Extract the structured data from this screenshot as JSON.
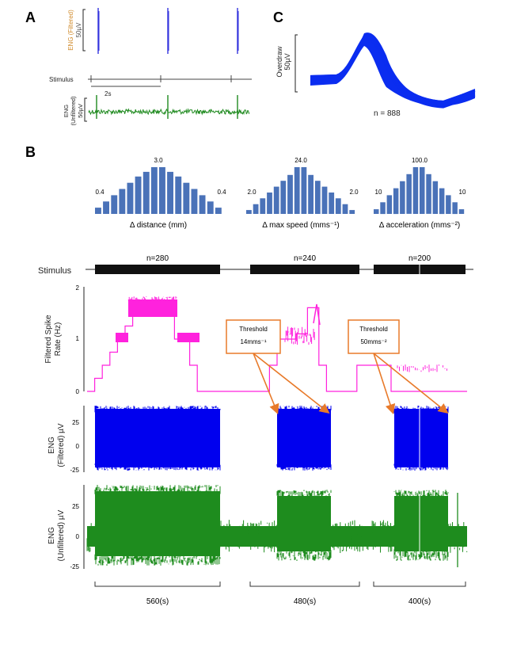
{
  "panels": {
    "a": "A",
    "b": "B",
    "c": "C"
  },
  "panel_a": {
    "eng_filtered_label": "ENG (Filtered)",
    "eng_filtered_scale": "50µV",
    "stimulus_label": "Stimulus",
    "time_scale": "2s",
    "eng_unfiltered_label": "ENG (Unfiltered)",
    "eng_unfiltered_label_line1": "ENG",
    "eng_unfiltered_label_line2": "(Unfiltered)",
    "eng_unfiltered_scale": "50µV",
    "colors": {
      "filtered": "#3333dd",
      "unfiltered": "#1f8a1f",
      "stimulus": "#333333"
    }
  },
  "panel_c": {
    "ylabel": "Overdraw",
    "scale": "50µV",
    "n_label": "n = 888",
    "color": "#0b2df0"
  },
  "histograms": [
    {
      "id": "distance",
      "xlabel": "Δ distance (mm)",
      "peak_label": "3.0",
      "left_label": "0.4",
      "right_label": "0.4",
      "values": [
        0.4,
        0.8,
        1.2,
        1.6,
        2.0,
        2.4,
        2.7,
        3.0,
        3.0,
        2.7,
        2.4,
        2.0,
        1.6,
        1.2,
        0.8,
        0.4
      ]
    },
    {
      "id": "max_speed",
      "xlabel": "Δ max speed (mms⁻¹)",
      "peak_label": "24.0",
      "left_label": "2.0",
      "right_label": "2.0",
      "values": [
        2.0,
        5.0,
        8.0,
        11.0,
        14.0,
        17.0,
        20.0,
        24.0,
        24.0,
        20.0,
        17.0,
        14.0,
        11.0,
        8.0,
        5.0,
        2.0
      ]
    },
    {
      "id": "acceleration",
      "xlabel": "Δ acceleration (mms⁻²)",
      "peak_label": "100.0",
      "left_label": "10",
      "right_label": "10",
      "values": [
        10,
        25,
        40,
        55,
        70,
        85,
        100,
        100,
        85,
        70,
        55,
        40,
        25,
        10
      ]
    }
  ],
  "stimulus_bar": {
    "label": "Stimulus",
    "blocks": [
      {
        "n": "n=280"
      },
      {
        "n": "n=240"
      },
      {
        "n": "n=200"
      }
    ]
  },
  "chart_data": [
    {
      "type": "line",
      "id": "filtered_spike_rate",
      "ylabel": "Filtered Spike Rate (Hz)",
      "ylabel_line1": "Filtered Spike",
      "ylabel_line2": "Rate (Hz)",
      "ylim": [
        0,
        2
      ],
      "yticks": [
        "0",
        "1",
        "2"
      ],
      "color": "#ff22dd",
      "steps": [
        [
          0,
          0
        ],
        [
          0.02,
          0.25
        ],
        [
          0.04,
          0.5
        ],
        [
          0.06,
          0.75
        ],
        [
          0.08,
          1.0
        ],
        [
          0.1,
          1.25
        ],
        [
          0.12,
          1.5
        ],
        [
          0.2,
          1.55
        ],
        [
          0.23,
          1.0
        ],
        [
          0.27,
          0.5
        ],
        [
          0.29,
          0
        ],
        [
          0.46,
          0
        ],
        [
          0.48,
          0.5
        ],
        [
          0.5,
          1.0
        ],
        [
          0.55,
          1.1
        ],
        [
          0.58,
          1.6
        ],
        [
          0.61,
          0.5
        ],
        [
          0.63,
          0
        ],
        [
          0.69,
          0
        ],
        [
          0.71,
          0.5
        ],
        [
          0.78,
          0.5
        ],
        [
          0.8,
          0
        ]
      ],
      "annotations": [
        {
          "text_line1": "Threshold",
          "text_line2": "14mms⁻¹"
        },
        {
          "text_line1": "Threshold",
          "text_line2": "50mms⁻²"
        }
      ],
      "annotation_color": "#e87a2a"
    },
    {
      "type": "area",
      "id": "eng_filtered",
      "ylabel": "ENG (Filtered) µV",
      "ylabel_line1": "ENG",
      "ylabel_line2": "(Filtered) µV",
      "ylim": [
        -25,
        25
      ],
      "yticks": [
        "25",
        "0",
        "-25"
      ],
      "color": "#0000ee",
      "segments": [
        {
          "start_s": 0,
          "end_s": 560,
          "amplitude": 25
        },
        {
          "start_s": 750,
          "end_s": 850,
          "amplitude": 25
        },
        {
          "start_s": 1000,
          "end_s": 1100,
          "amplitude": 25
        }
      ]
    },
    {
      "type": "area",
      "id": "eng_unfiltered",
      "ylabel": "ENG (Unfiltered) µV",
      "ylabel_line1": "ENG",
      "ylabel_line2": "(Unfiltered) µV",
      "ylim": [
        -25,
        25
      ],
      "yticks": [
        "25",
        "0",
        "-25"
      ],
      "color": "#1e8c1e",
      "baseline_amplitude": 6,
      "segments": [
        {
          "amplitude": 25
        },
        {
          "amplitude": 20
        },
        {
          "amplitude": 20
        }
      ]
    }
  ],
  "durations": [
    {
      "label": "560(s)"
    },
    {
      "label": "480(s)"
    },
    {
      "label": "400(s)"
    }
  ]
}
